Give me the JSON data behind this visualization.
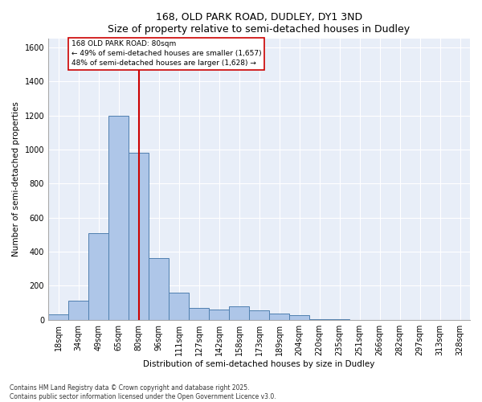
{
  "title1": "168, OLD PARK ROAD, DUDLEY, DY1 3ND",
  "title2": "Size of property relative to semi-detached houses in Dudley",
  "xlabel": "Distribution of semi-detached houses by size in Dudley",
  "ylabel": "Number of semi-detached properties",
  "categories": [
    "18sqm",
    "34sqm",
    "49sqm",
    "65sqm",
    "80sqm",
    "96sqm",
    "111sqm",
    "127sqm",
    "142sqm",
    "158sqm",
    "173sqm",
    "189sqm",
    "204sqm",
    "220sqm",
    "235sqm",
    "251sqm",
    "266sqm",
    "282sqm",
    "297sqm",
    "313sqm",
    "328sqm"
  ],
  "values": [
    30,
    110,
    510,
    1200,
    980,
    360,
    160,
    70,
    60,
    80,
    55,
    35,
    25,
    5,
    5,
    0,
    0,
    0,
    0,
    0,
    0
  ],
  "bar_color": "#aec6e8",
  "bar_edge_color": "#5080b0",
  "vline_x_index": 4,
  "vline_color": "#cc0000",
  "annotation_text": "168 OLD PARK ROAD: 80sqm\n← 49% of semi-detached houses are smaller (1,657)\n48% of semi-detached houses are larger (1,628) →",
  "annotation_box_color": "#cc0000",
  "ylim": [
    0,
    1650
  ],
  "yticks": [
    0,
    200,
    400,
    600,
    800,
    1000,
    1200,
    1400,
    1600
  ],
  "footer1": "Contains HM Land Registry data © Crown copyright and database right 2025.",
  "footer2": "Contains public sector information licensed under the Open Government Licence v3.0.",
  "bg_color": "#e8eef8",
  "fig_bg_color": "#ffffff",
  "title_fontsize": 9,
  "axis_label_fontsize": 7.5,
  "tick_fontsize": 7,
  "annotation_fontsize": 6.5,
  "footer_fontsize": 5.5
}
